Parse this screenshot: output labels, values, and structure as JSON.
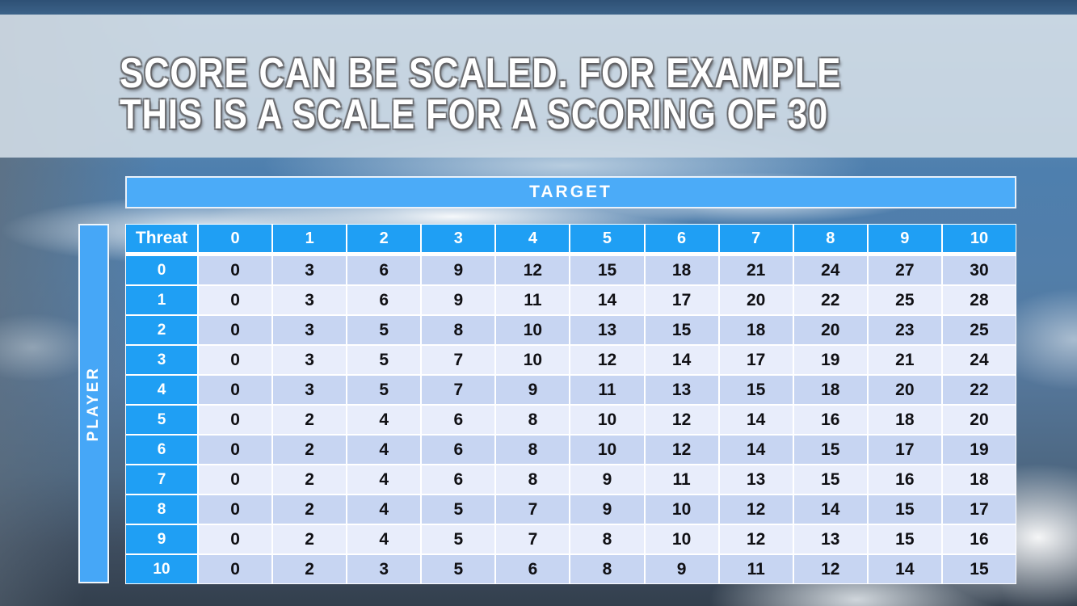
{
  "slide": {
    "title_line1": "SCORE CAN BE SCALED. FOR EXAMPLE",
    "title_line2": "THIS IS A SCALE FOR A SCORING OF 30"
  },
  "table": {
    "top_axis_label": "TARGET",
    "left_axis_label": "PLAYER",
    "corner_label": "Threat",
    "column_headers": [
      "0",
      "1",
      "2",
      "3",
      "4",
      "5",
      "6",
      "7",
      "8",
      "9",
      "10"
    ],
    "rows": [
      {
        "header": "0",
        "values": [
          "0",
          "3",
          "6",
          "9",
          "12",
          "15",
          "18",
          "21",
          "24",
          "27",
          "30"
        ]
      },
      {
        "header": "1",
        "values": [
          "0",
          "3",
          "6",
          "9",
          "11",
          "14",
          "17",
          "20",
          "22",
          "25",
          "28"
        ]
      },
      {
        "header": "2",
        "values": [
          "0",
          "3",
          "5",
          "8",
          "10",
          "13",
          "15",
          "18",
          "20",
          "23",
          "25"
        ]
      },
      {
        "header": "3",
        "values": [
          "0",
          "3",
          "5",
          "7",
          "10",
          "12",
          "14",
          "17",
          "19",
          "21",
          "24"
        ]
      },
      {
        "header": "4",
        "values": [
          "0",
          "3",
          "5",
          "7",
          "9",
          "11",
          "13",
          "15",
          "18",
          "20",
          "22"
        ]
      },
      {
        "header": "5",
        "values": [
          "0",
          "2",
          "4",
          "6",
          "8",
          "10",
          "12",
          "14",
          "16",
          "18",
          "20"
        ]
      },
      {
        "header": "6",
        "values": [
          "0",
          "2",
          "4",
          "6",
          "8",
          "10",
          "12",
          "14",
          "15",
          "17",
          "19"
        ]
      },
      {
        "header": "7",
        "values": [
          "0",
          "2",
          "4",
          "6",
          "8",
          "9",
          "11",
          "13",
          "15",
          "16",
          "18"
        ]
      },
      {
        "header": "8",
        "values": [
          "0",
          "2",
          "4",
          "5",
          "7",
          "9",
          "10",
          "12",
          "14",
          "15",
          "17"
        ]
      },
      {
        "header": "9",
        "values": [
          "0",
          "2",
          "4",
          "5",
          "7",
          "8",
          "10",
          "12",
          "13",
          "15",
          "16"
        ]
      },
      {
        "header": "10",
        "values": [
          "0",
          "2",
          "3",
          "5",
          "6",
          "8",
          "9",
          "11",
          "12",
          "14",
          "15"
        ]
      }
    ]
  },
  "colors": {
    "axis_bar_blue": "#4babf8",
    "header_cell_blue": "#1f9ff4",
    "row_band_dark": "#c7d5f2",
    "row_band_light": "#e8edfb",
    "top_strip": "#2e5075",
    "title_banner": "#d0dce6",
    "title_text": "#ffffff",
    "cell_text": "#101014"
  }
}
